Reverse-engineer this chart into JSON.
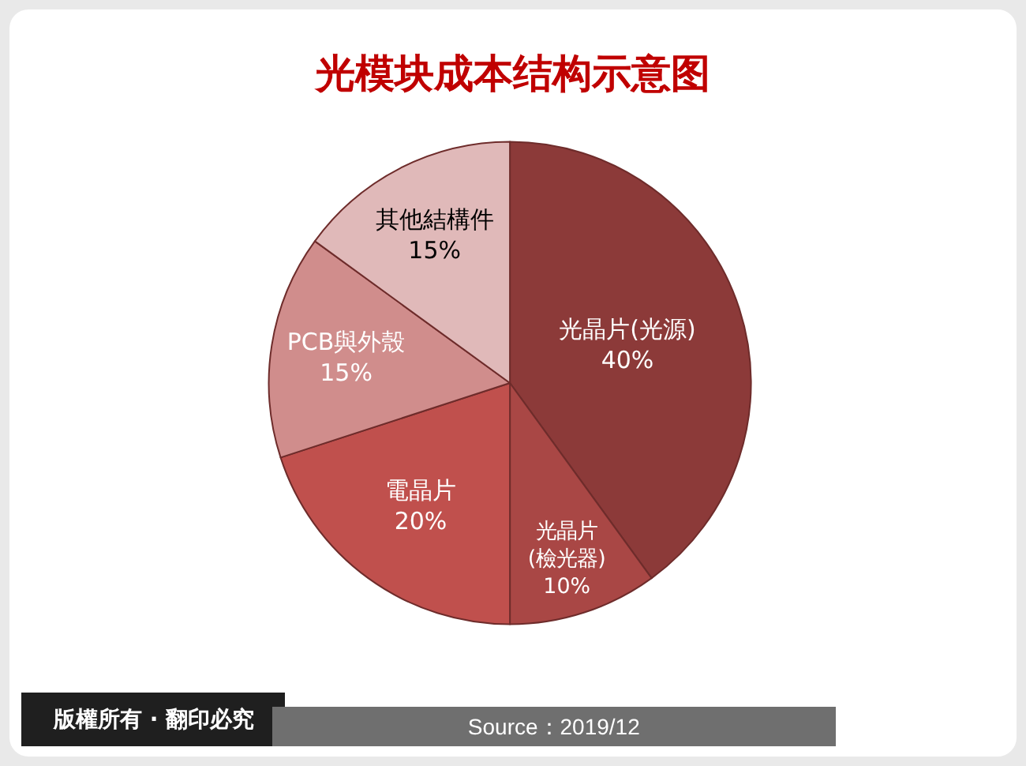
{
  "chart_data": {
    "type": "pie",
    "title": "光模块成本结构示意图",
    "categories": [
      "光晶片(光源)",
      "光晶片(檢光器)",
      "電晶片",
      "PCB與外殼",
      "其他結構件"
    ],
    "values": [
      40,
      10,
      20,
      15,
      15
    ],
    "value_labels": [
      "40%",
      "10%",
      "20%",
      "15%",
      "15%"
    ],
    "colors": [
      "#8c3a39",
      "#a94745",
      "#c0504d",
      "#d08d8c",
      "#e0b9b9"
    ],
    "annotations": [
      "版權所有 · 翻印必究",
      "Source：2019/12"
    ]
  }
}
